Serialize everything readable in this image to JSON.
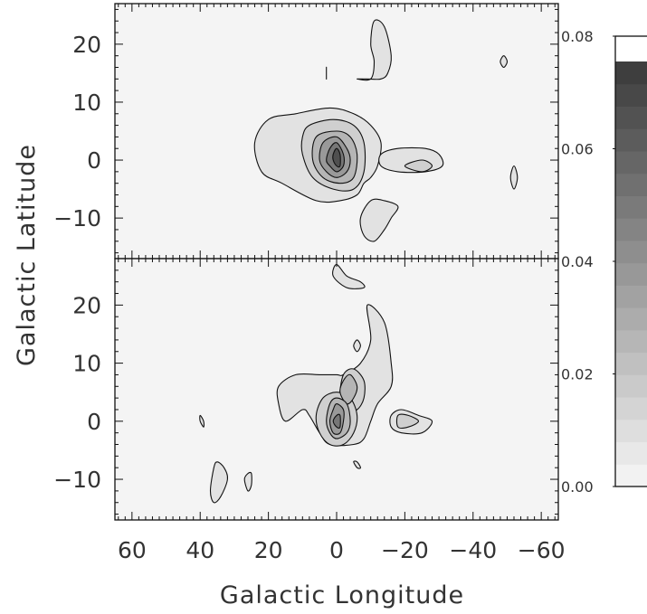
{
  "chart_data": {
    "type": "contour",
    "xlabel": "Galactic Longitude",
    "ylabel": "Galactic Latitude",
    "xlim": [
      65,
      -65
    ],
    "x_tick_labels": [
      {
        "value": 60,
        "label": "60"
      },
      {
        "value": 40,
        "label": "40"
      },
      {
        "value": 20,
        "label": "20"
      },
      {
        "value": 0,
        "label": "0"
      },
      {
        "value": -20,
        "label": "−20"
      },
      {
        "value": -40,
        "label": "−40"
      },
      {
        "value": -60,
        "label": "−60"
      }
    ],
    "panels": [
      {
        "name": "top",
        "ylim": [
          -17,
          27
        ],
        "y_tick_labels": [
          {
            "value": 20,
            "label": "20"
          },
          {
            "value": 10,
            "label": "10"
          },
          {
            "value": 0,
            "label": "0"
          },
          {
            "value": -10,
            "label": "−10"
          }
        ],
        "contours": [
          {
            "level": 1,
            "pts": [
              [
                12,
                8
              ],
              [
                2,
                9
              ],
              [
                -5,
                8
              ],
              [
                -10,
                6
              ],
              [
                -13,
                3
              ],
              [
                -12,
                -1
              ],
              [
                -10,
                -3
              ],
              [
                -8,
                -4
              ],
              [
                -6,
                -6
              ],
              [
                -1,
                -7
              ],
              [
                6,
                -7
              ],
              [
                16,
                -4
              ],
              [
                22,
                -2
              ],
              [
                24,
                3
              ],
              [
                20,
                7
              ]
            ]
          },
          {
            "level": 1,
            "pts": [
              [
                -13,
                1
              ],
              [
                -18,
                2
              ],
              [
                -26,
                2
              ],
              [
                -30,
                1
              ],
              [
                -31,
                -1
              ],
              [
                -26,
                -2
              ],
              [
                -18,
                -2
              ],
              [
                -13,
                -1
              ]
            ]
          },
          {
            "level": 1,
            "pts": [
              [
                -10,
                -7
              ],
              [
                -14,
                -7
              ],
              [
                -18,
                -8
              ],
              [
                -16,
                -10
              ],
              [
                -14,
                -12
              ],
              [
                -11,
                -14
              ],
              [
                -8,
                -13
              ],
              [
                -7,
                -10
              ]
            ]
          },
          {
            "level": 1,
            "pts": [
              [
                -6,
                14
              ],
              [
                -10,
                14
              ],
              [
                -11,
                17
              ],
              [
                -10,
                20
              ],
              [
                -11,
                24
              ],
              [
                -14,
                23
              ],
              [
                -16,
                18
              ],
              [
                -15,
                15
              ],
              [
                -13,
                14
              ],
              [
                -9,
                14
              ]
            ]
          },
          {
            "level": 1,
            "pts": [
              [
                -48,
                17
              ],
              [
                -49,
                16
              ],
              [
                -50,
                17
              ],
              [
                -49,
                18
              ]
            ]
          },
          {
            "level": 1,
            "pts": [
              [
                -52,
                -1
              ],
              [
                -53,
                -3
              ],
              [
                -52,
                -5
              ],
              [
                -51,
                -3
              ]
            ]
          },
          {
            "level": 1,
            "pts": [
              [
                3,
                15
              ],
              [
                3,
                14
              ],
              [
                3,
                16
              ]
            ]
          },
          {
            "level": 2,
            "pts": [
              [
                8,
                6
              ],
              [
                1,
                7
              ],
              [
                -5,
                6
              ],
              [
                -8,
                3
              ],
              [
                -8,
                -2
              ],
              [
                -5,
                -5
              ],
              [
                1,
                -5
              ],
              [
                7,
                -3
              ],
              [
                10,
                1
              ],
              [
                10,
                4
              ]
            ]
          },
          {
            "level": 2,
            "pts": [
              [
                -20,
                -1
              ],
              [
                -25,
                0
              ],
              [
                -28,
                -1
              ],
              [
                -25,
                -2
              ]
            ]
          },
          {
            "level": 3,
            "pts": [
              [
                6,
                4
              ],
              [
                0,
                5
              ],
              [
                -4,
                4
              ],
              [
                -6,
                1
              ],
              [
                -5,
                -3
              ],
              [
                -1,
                -4
              ],
              [
                4,
                -3
              ],
              [
                7,
                0
              ]
            ]
          },
          {
            "level": 4,
            "pts": [
              [
                4,
                3
              ],
              [
                0,
                4
              ],
              [
                -3,
                2
              ],
              [
                -4,
                0
              ],
              [
                -3,
                -2
              ],
              [
                0,
                -3
              ],
              [
                3,
                -2
              ],
              [
                5,
                0
              ]
            ]
          },
          {
            "level": 5,
            "pts": [
              [
                2,
                2
              ],
              [
                0,
                3
              ],
              [
                -2,
                1
              ],
              [
                -2,
                -1
              ],
              [
                0,
                -2
              ],
              [
                2,
                -1
              ],
              [
                3,
                0
              ]
            ]
          },
          {
            "level": 6,
            "pts": [
              [
                1,
                1
              ],
              [
                0,
                2
              ],
              [
                -1,
                1
              ],
              [
                -1,
                -1
              ],
              [
                0,
                -1
              ],
              [
                1,
                0
              ]
            ]
          }
        ]
      },
      {
        "name": "bottom",
        "ylim": [
          -17,
          28
        ],
        "y_tick_labels": [
          {
            "value": 20,
            "label": "20"
          },
          {
            "value": 10,
            "label": "10"
          },
          {
            "value": 0,
            "label": "0"
          },
          {
            "value": -10,
            "label": "−10"
          }
        ],
        "contours": [
          {
            "level": 1,
            "pts": [
              [
                -2,
                8
              ],
              [
                -7,
                10
              ],
              [
                -10,
                14
              ],
              [
                -9,
                20
              ],
              [
                -14,
                17
              ],
              [
                -16,
                10
              ],
              [
                -16,
                6
              ],
              [
                -12,
                3
              ],
              [
                -10,
                0
              ],
              [
                -8,
                -3
              ],
              [
                -5,
                -4
              ],
              [
                2,
                -4
              ],
              [
                5,
                -2
              ],
              [
                8,
                1
              ],
              [
                10,
                2
              ],
              [
                15,
                0
              ],
              [
                17,
                3
              ],
              [
                17,
                6
              ],
              [
                12,
                8
              ],
              [
                5,
                8
              ],
              [
                0,
                8
              ]
            ]
          },
          {
            "level": 1,
            "pts": [
              [
                -16,
                1
              ],
              [
                -19,
                2
              ],
              [
                -24,
                1
              ],
              [
                -28,
                0
              ],
              [
                -25,
                -2
              ],
              [
                -19,
                -2
              ],
              [
                -16,
                -1
              ]
            ]
          },
          {
            "level": 1,
            "pts": [
              [
                36,
                -8
              ],
              [
                35,
                -7
              ],
              [
                33,
                -8
              ],
              [
                32,
                -10
              ],
              [
                34,
                -13
              ],
              [
                36,
                -14
              ],
              [
                37,
                -12
              ]
            ]
          },
          {
            "level": 1,
            "pts": [
              [
                26,
                -9
              ],
              [
                25,
                -9
              ],
              [
                25,
                -11
              ],
              [
                26,
                -12
              ],
              [
                27,
                -10
              ]
            ]
          },
          {
            "level": 1,
            "pts": [
              [
                40,
                1
              ],
              [
                39,
                0
              ],
              [
                39,
                -1
              ],
              [
                40,
                0
              ]
            ]
          },
          {
            "level": 1,
            "pts": [
              [
                0,
                27
              ],
              [
                -3,
                25
              ],
              [
                -7,
                24
              ],
              [
                -8,
                23
              ],
              [
                -3,
                23
              ],
              [
                1,
                25
              ]
            ]
          },
          {
            "level": 1,
            "pts": [
              [
                -6,
                14
              ],
              [
                -5,
                13
              ],
              [
                -6,
                12
              ],
              [
                -7,
                13
              ]
            ]
          },
          {
            "level": 1,
            "pts": [
              [
                -5,
                -7
              ],
              [
                -6,
                -7
              ],
              [
                -7,
                -8
              ],
              [
                -6,
                -8
              ]
            ]
          },
          {
            "level": 2,
            "pts": [
              [
                -2,
                8
              ],
              [
                -5,
                9
              ],
              [
                -8,
                7
              ],
              [
                -8,
                4
              ],
              [
                -6,
                2
              ],
              [
                -3,
                2
              ],
              [
                -1,
                4
              ]
            ]
          },
          {
            "level": 2,
            "pts": [
              [
                4,
                4
              ],
              [
                0,
                5
              ],
              [
                -4,
                4
              ],
              [
                -6,
                1
              ],
              [
                -5,
                -2
              ],
              [
                -2,
                -4
              ],
              [
                2,
                -4
              ],
              [
                5,
                -2
              ],
              [
                6,
                1
              ]
            ]
          },
          {
            "level": 2,
            "pts": [
              [
                -18,
                1
              ],
              [
                -21,
                1
              ],
              [
                -24,
                0
              ],
              [
                -21,
                -1
              ],
              [
                -18,
                -1
              ]
            ]
          },
          {
            "level": 3,
            "pts": [
              [
                -2,
                7
              ],
              [
                -4,
                8
              ],
              [
                -6,
                6
              ],
              [
                -5,
                4
              ],
              [
                -3,
                3
              ],
              [
                -1,
                5
              ]
            ]
          },
          {
            "level": 3,
            "pts": [
              [
                2,
                3
              ],
              [
                0,
                4
              ],
              [
                -3,
                3
              ],
              [
                -4,
                0
              ],
              [
                -3,
                -2
              ],
              [
                0,
                -3
              ],
              [
                2,
                -2
              ],
              [
                3,
                0
              ]
            ]
          },
          {
            "level": 4,
            "pts": [
              [
                1,
                2
              ],
              [
                0,
                3
              ],
              [
                -2,
                2
              ],
              [
                -2,
                0
              ],
              [
                -1,
                -2
              ],
              [
                1,
                -2
              ],
              [
                2,
                0
              ]
            ]
          },
          {
            "level": 5,
            "pts": [
              [
                0,
                1
              ],
              [
                -1,
                1
              ],
              [
                -1,
                -1
              ],
              [
                0,
                -1
              ],
              [
                1,
                0
              ]
            ]
          }
        ]
      }
    ],
    "colorbar": {
      "range": [
        0.0,
        0.08
      ],
      "tick_labels": [
        {
          "value": 0.08,
          "label": "0.08"
        },
        {
          "value": 0.06,
          "label": "0.06"
        },
        {
          "value": 0.04,
          "label": "0.04"
        },
        {
          "value": 0.02,
          "label": "0.02"
        },
        {
          "value": 0.0,
          "label": "0.00"
        }
      ],
      "levels": [
        "#f2f2f2",
        "#e8e8e8",
        "#dedede",
        "#d4d4d4",
        "#cacaca",
        "#c0c0c0",
        "#b6b6b6",
        "#acacac",
        "#a2a2a2",
        "#989898",
        "#8e8e8e",
        "#848484",
        "#7a7a7a",
        "#707070",
        "#666666",
        "#5c5c5c",
        "#525252",
        "#484848",
        "#3e3e3e"
      ]
    },
    "fill_colors": [
      "#f2f2f2",
      "#e2e2e2",
      "#cfcfcf",
      "#b5b5b5",
      "#999999",
      "#777777",
      "#505050"
    ],
    "background_color": "#f4f4f4"
  }
}
